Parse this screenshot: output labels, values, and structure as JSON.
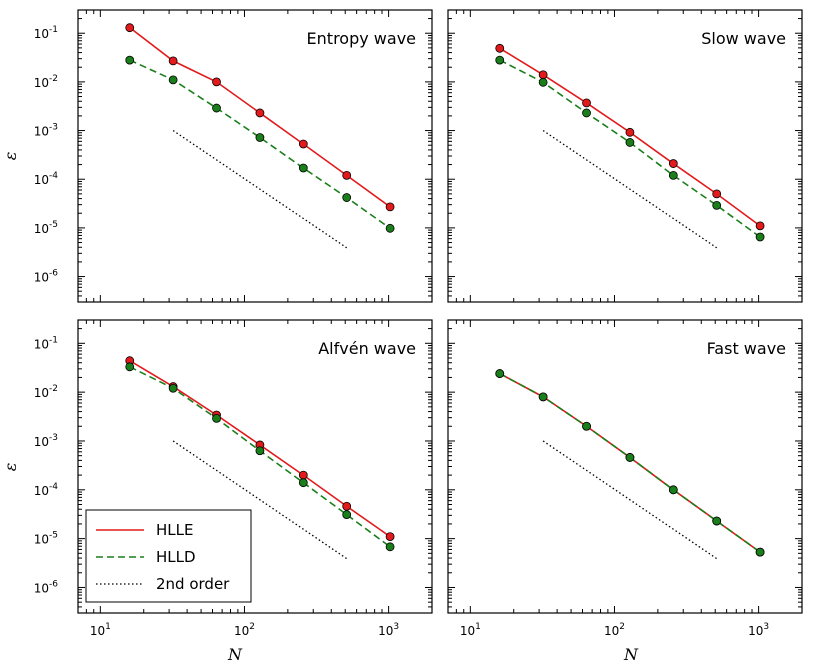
{
  "chart_data": {
    "type": "line",
    "scale": "log-log",
    "shared_xlabel": "N",
    "shared_ylabel": "ε",
    "x_tick_labels": [
      {
        "base": "10",
        "exp": "1"
      },
      {
        "base": "10",
        "exp": "2"
      },
      {
        "base": "10",
        "exp": "3"
      }
    ],
    "y_tick_labels": [
      {
        "base": "10",
        "exp": "-6"
      },
      {
        "base": "10",
        "exp": "-5"
      },
      {
        "base": "10",
        "exp": "-4"
      },
      {
        "base": "10",
        "exp": "-3"
      },
      {
        "base": "10",
        "exp": "-2"
      },
      {
        "base": "10",
        "exp": "-1"
      }
    ],
    "xlim": [
      7,
      2000
    ],
    "ylim": [
      3e-07,
      0.3
    ],
    "legend": {
      "placement": "lower-left of bottom-left panel",
      "entries": [
        {
          "label": "HLLE",
          "color": "#e31a1c",
          "style": "solid"
        },
        {
          "label": "HLLD",
          "color": "#1a7f1a",
          "style": "dashed"
        },
        {
          "label": "2nd order",
          "color": "#000000",
          "style": "dotted"
        }
      ]
    },
    "reference_line": {
      "name": "2nd order",
      "x": [
        32,
        512
      ],
      "y": [
        0.001,
        3.9e-06
      ]
    },
    "panels": [
      {
        "title": "Entropy wave",
        "x": [
          16,
          32,
          64,
          128,
          256,
          512,
          1024
        ],
        "series": [
          {
            "name": "HLLE",
            "y": [
              0.13,
              0.027,
              0.01,
              0.0023,
              0.00053,
              0.00012,
              2.7e-05
            ]
          },
          {
            "name": "HLLD",
            "y": [
              0.028,
              0.011,
              0.0029,
              0.00072,
              0.00017,
              4.2e-05,
              9.8e-06
            ]
          }
        ]
      },
      {
        "title": "Slow wave",
        "x": [
          16,
          32,
          64,
          128,
          256,
          512,
          1024
        ],
        "series": [
          {
            "name": "HLLE",
            "y": [
              0.049,
              0.014,
              0.0037,
              0.00092,
              0.00021,
              5e-05,
              1.1e-05
            ]
          },
          {
            "name": "HLLD",
            "y": [
              0.028,
              0.0098,
              0.0023,
              0.00057,
              0.00012,
              2.9e-05,
              6.5e-06
            ]
          }
        ]
      },
      {
        "title": "Alfvén wave",
        "x": [
          16,
          32,
          64,
          128,
          256,
          512,
          1024
        ],
        "series": [
          {
            "name": "HLLE",
            "y": [
              0.044,
              0.013,
              0.0034,
              0.00083,
              0.0002,
              4.6e-05,
              1.1e-05
            ]
          },
          {
            "name": "HLLD",
            "y": [
              0.033,
              0.012,
              0.0029,
              0.00063,
              0.00014,
              3.1e-05,
              6.8e-06
            ]
          }
        ]
      },
      {
        "title": "Fast wave",
        "x": [
          16,
          32,
          64,
          128,
          256,
          512,
          1024
        ],
        "series": [
          {
            "name": "HLLE",
            "y": [
              0.024,
              0.008,
              0.002,
              0.00046,
              0.0001,
              2.3e-05,
              5.3e-06
            ]
          },
          {
            "name": "HLLD",
            "y": [
              0.024,
              0.008,
              0.002,
              0.00046,
              0.0001,
              2.3e-05,
              5.3e-06
            ]
          }
        ]
      }
    ]
  }
}
